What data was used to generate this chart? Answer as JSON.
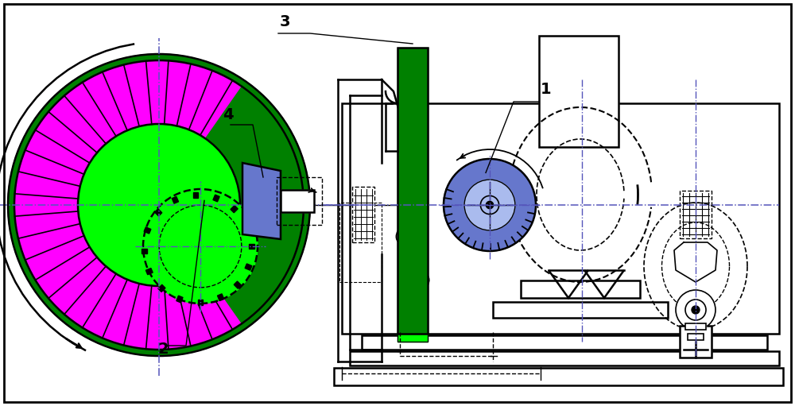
{
  "bg_color": "#ffffff",
  "dark_green": "#008000",
  "light_green": "#00ff00",
  "magenta": "#ff00ff",
  "blue_purple": "#6677cc",
  "black": "#000000",
  "label_1": "1",
  "label_2": "2",
  "label_3": "3",
  "label_4": "4",
  "fig_width": 10.0,
  "fig_height": 5.11,
  "dpi": 100
}
